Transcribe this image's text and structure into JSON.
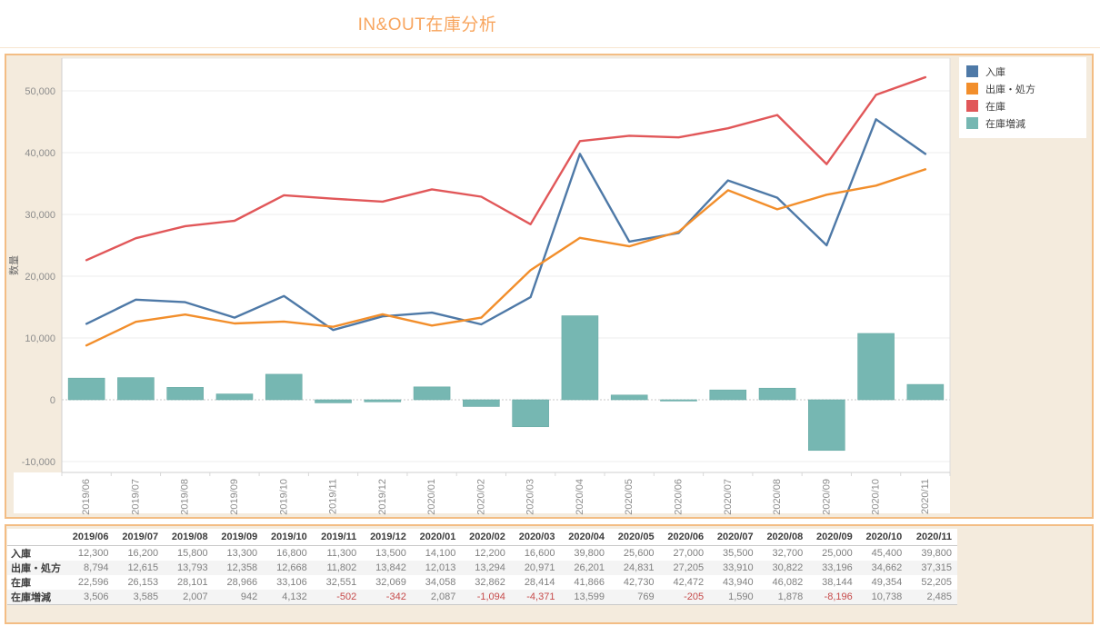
{
  "title": "IN&OUT在庫分析",
  "colors": {
    "accent_border": "#f3bd84",
    "panel_background": "#f4ebdd",
    "title": "#f8a55e",
    "blue": "#4e79a7",
    "orange": "#f28e2b",
    "red": "#e15759",
    "teal": "#76b7b2",
    "negative_value": "#c64a4a",
    "tick_text": "#8c8c8c"
  },
  "legend": {
    "items": [
      {
        "label": "入庫",
        "color": "#4e79a7"
      },
      {
        "label": "出庫・処方",
        "color": "#f28e2b"
      },
      {
        "label": "在庫",
        "color": "#e15759"
      },
      {
        "label": "在庫増減",
        "color": "#76b7b2"
      }
    ]
  },
  "chart_data": {
    "type": "combo",
    "title": "IN&OUT在庫分析",
    "xlabel": "",
    "ylabel": "数量",
    "categories": [
      "2019/06",
      "2019/07",
      "2019/08",
      "2019/09",
      "2019/10",
      "2019/11",
      "2019/12",
      "2020/01",
      "2020/02",
      "2020/03",
      "2020/04",
      "2020/05",
      "2020/06",
      "2020/07",
      "2020/08",
      "2020/09",
      "2020/10",
      "2020/11"
    ],
    "series": [
      {
        "name": "入庫",
        "type": "line",
        "color": "#4e79a7",
        "values": [
          12300,
          16200,
          15800,
          13300,
          16800,
          11300,
          13500,
          14100,
          12200,
          16600,
          39800,
          25600,
          27000,
          35500,
          32700,
          25000,
          45400,
          39800
        ]
      },
      {
        "name": "出庫・処方",
        "type": "line",
        "color": "#f28e2b",
        "values": [
          8794,
          12615,
          13793,
          12358,
          12668,
          11802,
          13842,
          12013,
          13294,
          20971,
          26201,
          24831,
          27205,
          33910,
          30822,
          33196,
          34662,
          37315
        ]
      },
      {
        "name": "在庫",
        "type": "line",
        "color": "#e15759",
        "values": [
          22596,
          26153,
          28101,
          28966,
          33106,
          32551,
          32069,
          34058,
          32862,
          28414,
          41866,
          42730,
          42472,
          43940,
          46082,
          38144,
          49354,
          52205
        ]
      },
      {
        "name": "在庫増減",
        "type": "bar",
        "color": "#76b7b2",
        "values": [
          3506,
          3585,
          2007,
          942,
          4132,
          -502,
          -342,
          2087,
          -1094,
          -4371,
          13599,
          769,
          -205,
          1590,
          1878,
          -8196,
          10738,
          2485
        ]
      }
    ],
    "ylim": [
      -11800,
      55300
    ],
    "yticks": [
      -10000,
      0,
      10000,
      20000,
      30000,
      40000,
      50000
    ],
    "grid": true,
    "legend_position": "top-right"
  },
  "table": {
    "corner": "",
    "columns": [
      "2019/06",
      "2019/07",
      "2019/08",
      "2019/09",
      "2019/10",
      "2019/11",
      "2019/12",
      "2020/01",
      "2020/02",
      "2020/03",
      "2020/04",
      "2020/05",
      "2020/06",
      "2020/07",
      "2020/08",
      "2020/09",
      "2020/10",
      "2020/11"
    ],
    "rows": [
      {
        "label": "入庫",
        "values": [
          12300,
          16200,
          15800,
          13300,
          16800,
          11300,
          13500,
          14100,
          12200,
          16600,
          39800,
          25600,
          27000,
          35500,
          32700,
          25000,
          45400,
          39800
        ]
      },
      {
        "label": "出庫・処方",
        "values": [
          8794,
          12615,
          13793,
          12358,
          12668,
          11802,
          13842,
          12013,
          13294,
          20971,
          26201,
          24831,
          27205,
          33910,
          30822,
          33196,
          34662,
          37315
        ]
      },
      {
        "label": "在庫",
        "values": [
          22596,
          26153,
          28101,
          28966,
          33106,
          32551,
          32069,
          34058,
          32862,
          28414,
          41866,
          42730,
          42472,
          43940,
          46082,
          38144,
          49354,
          52205
        ]
      },
      {
        "label": "在庫増減",
        "values": [
          3506,
          3585,
          2007,
          942,
          4132,
          -502,
          -342,
          2087,
          -1094,
          -4371,
          13599,
          769,
          -205,
          1590,
          1878,
          -8196,
          10738,
          2485
        ]
      }
    ]
  }
}
